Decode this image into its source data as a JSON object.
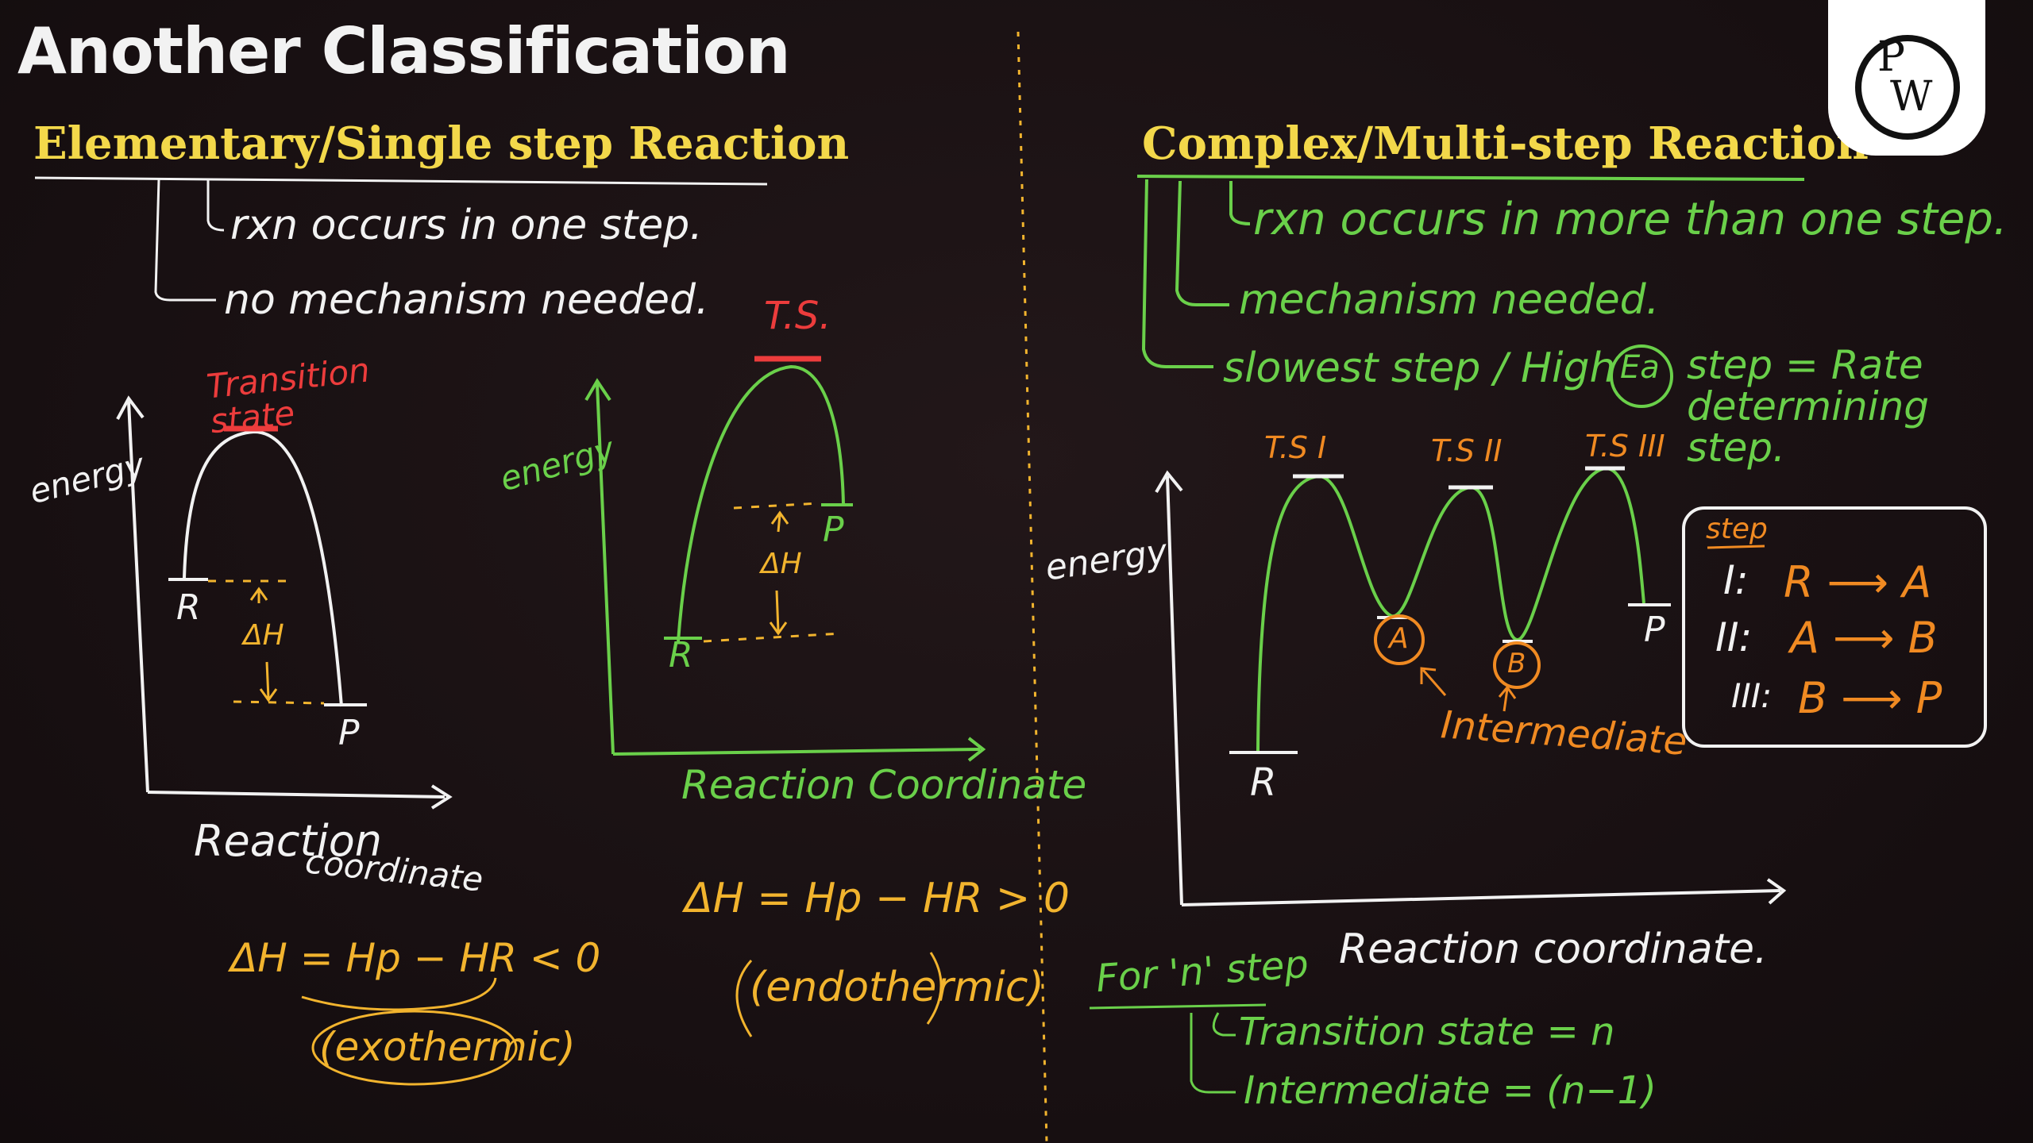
{
  "title": "Another Classification",
  "left": {
    "heading": "Elementary/Single step Reaction",
    "notes": [
      "rxn occurs in one step.",
      "no mechanism needed."
    ],
    "exo_graph": {
      "ylabel": "energy",
      "ts_label": "Transition state",
      "reactant": "R",
      "product": "P",
      "delta": "ΔH",
      "xlabel_1": "Reaction",
      "xlabel_2": "coordinate",
      "equation": "ΔH = Hp − HR < 0",
      "type": "(exothermic)"
    },
    "endo_graph": {
      "ylabel": "energy",
      "ts_label": "T.S.",
      "reactant": "R",
      "product": "P",
      "delta": "ΔH",
      "xlabel": "Reaction Coordinate",
      "equation": "ΔH = Hp − HR > 0",
      "type": "(endothermic)"
    }
  },
  "right": {
    "heading": "Complex/Multi-step Reaction",
    "notes": [
      "rxn occurs in more than one step.",
      "mechanism needed."
    ],
    "rds_note": {
      "prefix": "slowest step / High",
      "circled": "Ea",
      "suffix": "step = Rate determining step."
    },
    "graph": {
      "ylabel": "energy",
      "ts_labels": [
        "T.S I",
        "T.S II",
        "T.S III"
      ],
      "reactant": "R",
      "product": "P",
      "intermediates": [
        "A",
        "B"
      ],
      "intermediate_label": "Intermediate",
      "xlabel": "Reaction coordinate."
    },
    "steps_box": {
      "title": "step",
      "steps": [
        {
          "num": "I:",
          "eq": "R ⟶ A"
        },
        {
          "num": "II:",
          "eq": "A ⟶ B"
        },
        {
          "num": "III:",
          "eq": "B ⟶ P"
        }
      ]
    },
    "n_step": {
      "heading": "For 'n' step",
      "lines": [
        "Transition state = n",
        "Intermediate = (n−1)"
      ]
    }
  },
  "colors": {
    "background": "#1a1214",
    "white_ink": "#f2f2f2",
    "green_ink": "#6ad04a",
    "yellow_ink": "#f2b42e",
    "orange_ink": "#f08a22",
    "red_ink": "#ec3c3c",
    "heading": "#f3d84a"
  },
  "logo": {
    "letters": [
      "P",
      "W"
    ]
  }
}
